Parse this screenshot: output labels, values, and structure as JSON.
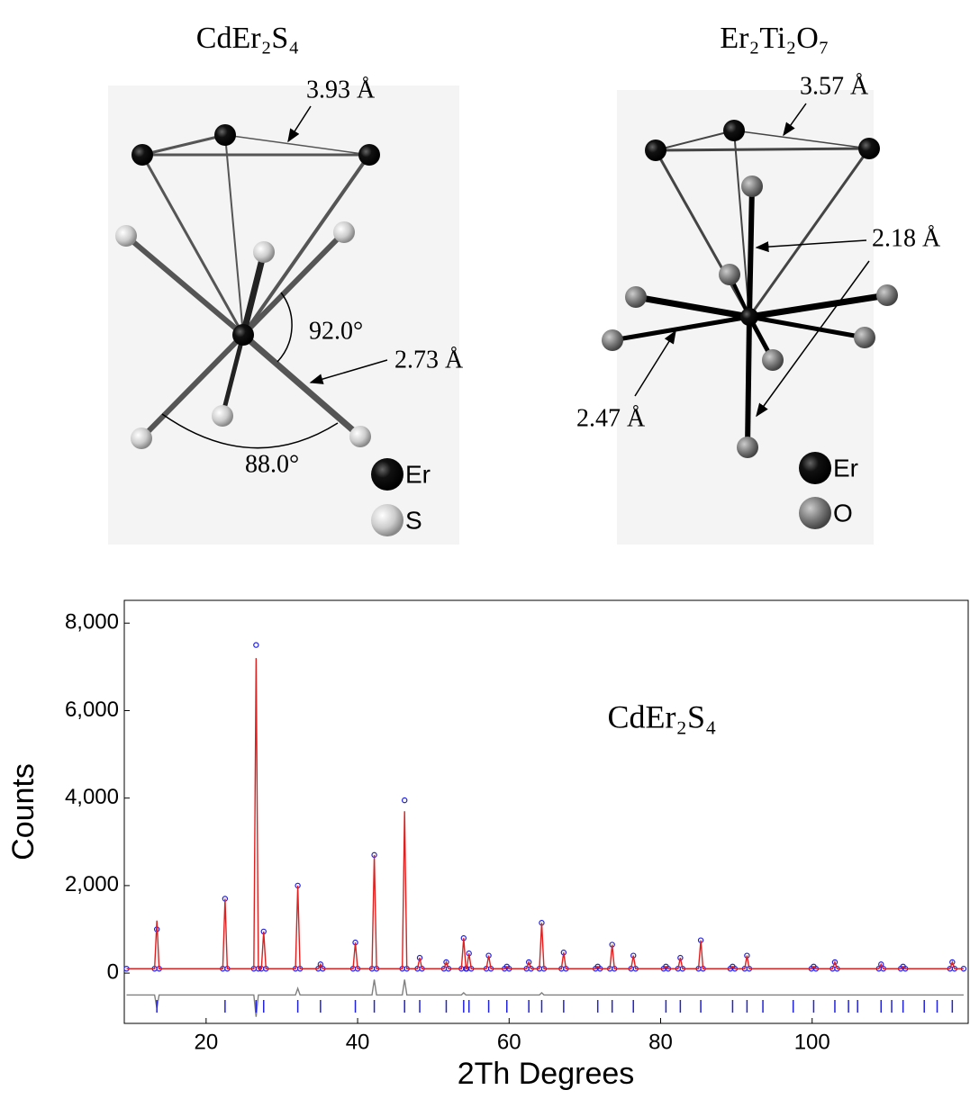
{
  "diagrams": [
    {
      "title": "CdEr₂S₄",
      "labels": [
        "3.93 Å",
        "92.0°",
        "2.73 Å",
        "88.0°"
      ],
      "legend": [
        "Er",
        "S"
      ]
    },
    {
      "title": "Er₂Ti₂O₇",
      "labels": [
        "3.57 Å",
        "2.18 Å",
        "2.47 Å"
      ],
      "legend": [
        "Er",
        "O"
      ]
    }
  ],
  "chart_data": {
    "type": "line",
    "annotation": "CdEr₂S₄",
    "xlabel": "2Th Degrees",
    "ylabel": "Counts",
    "xlim": [
      9.2,
      120.6
    ],
    "xticks": [
      20,
      40,
      60,
      80,
      100
    ],
    "ylim": [
      -1150,
      8520
    ],
    "yticks": [
      0,
      {
        "value": 2000,
        "label": "2,000"
      },
      {
        "value": 4000,
        "label": "4,000"
      },
      {
        "value": 6000,
        "label": "6,000"
      },
      {
        "value": 8000,
        "label": "8,000"
      }
    ],
    "grid": false,
    "x": [
      9.5,
      13.2,
      13.5,
      13.8,
      22.2,
      22.5,
      22.8,
      26.3,
      26.6,
      26.9,
      27.3,
      27.6,
      27.9,
      31.8,
      32.1,
      32.4,
      34.8,
      35.1,
      35.4,
      39.4,
      39.7,
      40.0,
      41.9,
      42.2,
      42.5,
      45.9,
      46.2,
      46.5,
      47.9,
      48.2,
      48.5,
      51.4,
      51.7,
      52.0,
      53.7,
      54.0,
      54.3,
      54.4,
      54.7,
      55.0,
      57.0,
      57.3,
      57.6,
      59.4,
      59.7,
      60.0,
      62.3,
      62.6,
      62.9,
      64.0,
      64.3,
      64.6,
      66.9,
      67.2,
      67.5,
      71.4,
      71.7,
      72.0,
      73.3,
      73.6,
      73.9,
      76.1,
      76.4,
      76.7,
      80.4,
      80.7,
      81.0,
      82.3,
      82.6,
      82.9,
      85.0,
      85.3,
      85.6,
      89.2,
      89.5,
      89.8,
      91.1,
      91.4,
      91.7,
      99.9,
      100.2,
      100.5,
      102.7,
      103.0,
      103.3,
      108.8,
      109.1,
      109.4,
      111.7,
      112.0,
      112.3,
      118.2,
      118.5,
      118.8,
      120.0
    ],
    "series": [
      {
        "color": "#2020e0",
        "style": "markers",
        "values": [
          100,
          100,
          1000,
          100,
          100,
          1700,
          100,
          100,
          7500,
          100,
          100,
          950,
          100,
          100,
          2000,
          100,
          100,
          200,
          100,
          100,
          700,
          100,
          100,
          2700,
          100,
          100,
          3950,
          100,
          100,
          350,
          100,
          100,
          250,
          100,
          100,
          800,
          100,
          100,
          450,
          100,
          100,
          400,
          100,
          100,
          150,
          100,
          100,
          250,
          100,
          100,
          1150,
          100,
          100,
          470,
          100,
          100,
          150,
          100,
          100,
          650,
          100,
          100,
          400,
          100,
          100,
          150,
          100,
          100,
          350,
          100,
          100,
          750,
          100,
          100,
          150,
          100,
          100,
          400,
          100,
          100,
          150,
          100,
          100,
          250,
          100,
          100,
          200,
          100,
          100,
          150,
          100,
          100,
          250,
          100,
          100
        ]
      },
      {
        "color": "#e02020",
        "style": "line",
        "values": [
          100,
          100,
          1200,
          100,
          100,
          1700,
          100,
          100,
          7200,
          100,
          100,
          950,
          100,
          100,
          2000,
          100,
          100,
          200,
          100,
          100,
          700,
          100,
          100,
          2700,
          100,
          100,
          3700,
          100,
          100,
          350,
          100,
          100,
          250,
          100,
          100,
          800,
          100,
          100,
          450,
          100,
          100,
          400,
          100,
          100,
          150,
          100,
          100,
          250,
          100,
          100,
          1150,
          100,
          100,
          470,
          100,
          100,
          150,
          100,
          100,
          650,
          100,
          100,
          400,
          100,
          100,
          150,
          100,
          100,
          350,
          100,
          100,
          750,
          100,
          100,
          150,
          100,
          100,
          400,
          100,
          100,
          150,
          100,
          100,
          250,
          100,
          100,
          200,
          100,
          100,
          150,
          100,
          100,
          250,
          100,
          100
        ]
      },
      {
        "color": "#808080",
        "style": "line",
        "values": [
          -500,
          -500,
          -800,
          -500,
          -500,
          -500,
          -500,
          -500,
          -1000,
          -500,
          -500,
          -500,
          -500,
          -500,
          -350,
          -500,
          -500,
          -500,
          -500,
          -500,
          -500,
          -500,
          -500,
          -150,
          -500,
          -500,
          -150,
          -500,
          -500,
          -500,
          -500,
          -500,
          -500,
          -500,
          -500,
          -450,
          -500,
          -500,
          -500,
          -500,
          -500,
          -500,
          -500,
          -500,
          -500,
          -500,
          -500,
          -500,
          -500,
          -500,
          -450,
          -500,
          -500,
          -500,
          -500,
          -500,
          -500,
          -500,
          -500,
          -500,
          -500,
          -500,
          -500,
          -500,
          -500,
          -500,
          -500,
          -500,
          -500,
          -500,
          -500,
          -500,
          -500,
          -500,
          -500,
          -500,
          -500,
          -500,
          -500,
          -500,
          -500,
          -500,
          -500,
          -500,
          -500,
          -500,
          -500,
          -500,
          -500,
          -500,
          -500,
          -500,
          -500,
          -500,
          -500
        ]
      }
    ],
    "reflections": [
      13.5,
      22.5,
      26.6,
      27.6,
      32.1,
      35.1,
      39.7,
      42.2,
      46.2,
      48.2,
      51.7,
      54.0,
      54.7,
      57.3,
      59.7,
      62.6,
      64.3,
      67.2,
      71.7,
      73.6,
      76.4,
      80.7,
      82.6,
      85.3,
      89.5,
      91.4,
      93.5,
      97.5,
      100.2,
      103.0,
      104.8,
      106.0,
      109.1,
      110.5,
      112.0,
      114.8,
      116.5,
      118.5
    ],
    "reflection_color": "#2020e0"
  }
}
